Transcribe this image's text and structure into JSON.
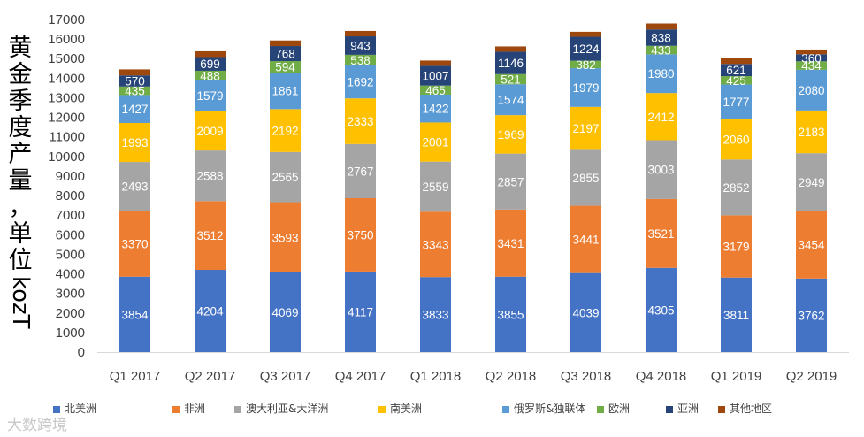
{
  "chart_data": {
    "type": "stacked-bar",
    "ylabel": "黄金季度产量，单位kozT",
    "ylim": [
      0,
      17000
    ],
    "ytick_step": 1000,
    "grid": false,
    "legend_position": "bottom",
    "categories": [
      "Q1 2017",
      "Q2 2017",
      "Q3 2017",
      "Q4 2017",
      "Q1 2018",
      "Q2 2018",
      "Q3 2018",
      "Q4 2018",
      "Q1 2019",
      "Q2 2019"
    ],
    "series": [
      {
        "name": "北美洲",
        "color": "#4472c4",
        "label_color": "#ffffff",
        "values": [
          3854,
          4204,
          4069,
          4117,
          3833,
          3855,
          4039,
          4305,
          3811,
          3762
        ]
      },
      {
        "name": "非洲",
        "color": "#ed7d31",
        "label_color": "#ffffff",
        "values": [
          3370,
          3512,
          3593,
          3750,
          3343,
          3431,
          3441,
          3521,
          3179,
          3454
        ]
      },
      {
        "name": "澳大利亚&大洋洲",
        "color": "#a5a5a5",
        "label_color": "#ffffff",
        "values": [
          2493,
          2588,
          2565,
          2767,
          2559,
          2857,
          2855,
          3003,
          2852,
          2949
        ]
      },
      {
        "name": "南美洲",
        "color": "#ffc000",
        "label_color": "#ffffff",
        "values": [
          1993,
          2009,
          2192,
          2333,
          2001,
          1969,
          2197,
          2412,
          2060,
          2183
        ]
      },
      {
        "name": "俄罗斯&独联体",
        "color": "#5b9bd5",
        "label_color": "#ffffff",
        "values": [
          1427,
          1579,
          1861,
          1692,
          1422,
          1574,
          1979,
          1980,
          1777,
          2080
        ]
      },
      {
        "name": "欧洲",
        "color": "#70ad47",
        "label_color": "#ffffff",
        "values": [
          435,
          488,
          594,
          538,
          465,
          521,
          382,
          433,
          425,
          434
        ]
      },
      {
        "name": "亚洲",
        "color": "#264478",
        "label_color": "#ffffff",
        "values": [
          570,
          699,
          768,
          943,
          1007,
          1146,
          1224,
          838,
          621,
          360
        ]
      },
      {
        "name": "其他地区",
        "color": "#9e480e",
        "label_color": "#ffffff",
        "values": [
          307,
          296,
          285,
          275,
          271,
          270,
          255,
          305,
          286,
          243
        ]
      }
    ],
    "labeled_series_count": 7
  },
  "watermark": "大数跨境"
}
